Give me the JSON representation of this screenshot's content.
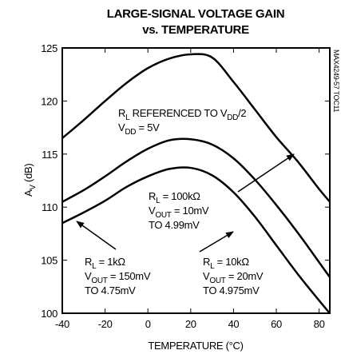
{
  "chart_data": {
    "type": "line",
    "title": [
      "LARGE-SIGNAL VOLTAGE GAIN",
      "vs. TEMPERATURE"
    ],
    "side_label": "MAX4249-57 TOC11",
    "x_label": "TEMPERATURE (°C)",
    "y_label": [
      "A",
      "V",
      " (dB)"
    ],
    "x": [
      -40,
      -30,
      -20,
      -10,
      0,
      10,
      20,
      30,
      40,
      50,
      60,
      70,
      80,
      85
    ],
    "series": [
      {
        "color": "#000000",
        "values": [
          116.5,
          118.2,
          120.0,
          121.7,
          123.1,
          124.0,
          124.4,
          124.1,
          121.8,
          119.2,
          116.6,
          114.3,
          111.7,
          110.5
        ]
      },
      {
        "color": "#000000",
        "values": [
          110.5,
          111.6,
          112.9,
          114.3,
          115.5,
          116.3,
          116.4,
          115.9,
          114.6,
          112.6,
          110.2,
          107.6,
          104.8,
          103.4
        ]
      },
      {
        "color": "#000000",
        "values": [
          108.5,
          109.5,
          110.6,
          111.9,
          112.9,
          113.6,
          113.7,
          113.0,
          111.4,
          109.1,
          106.4,
          103.7,
          101.2,
          100.0
        ]
      }
    ],
    "xlim": [
      -40,
      85
    ],
    "ylim": [
      100,
      125
    ],
    "xticks": [
      -40,
      -20,
      0,
      20,
      40,
      60,
      80
    ],
    "yticks": [
      100,
      105,
      110,
      115,
      120,
      125
    ],
    "annotations": [
      {
        "lines": [
          [
            "R",
            "L",
            " REFERENCED TO V",
            "DD",
            "/2"
          ],
          [
            "V",
            "DD",
            " = 5V"
          ]
        ]
      },
      {
        "lines": [
          [
            "R",
            "L",
            " = 100kΩ"
          ],
          [
            "V",
            "OUT",
            " = 10mV"
          ],
          [
            "TO 4.99mV"
          ]
        ]
      },
      {
        "lines": [
          [
            "R",
            "L",
            " = 1kΩ"
          ],
          [
            "V",
            "OUT",
            " = 150mV"
          ],
          [
            "TO 4.75mV"
          ]
        ]
      },
      {
        "lines": [
          [
            "R",
            "L",
            " = 10kΩ"
          ],
          [
            "V",
            "OUT",
            " = 20mV"
          ],
          [
            "TO 4.975mV"
          ]
        ]
      }
    ]
  }
}
